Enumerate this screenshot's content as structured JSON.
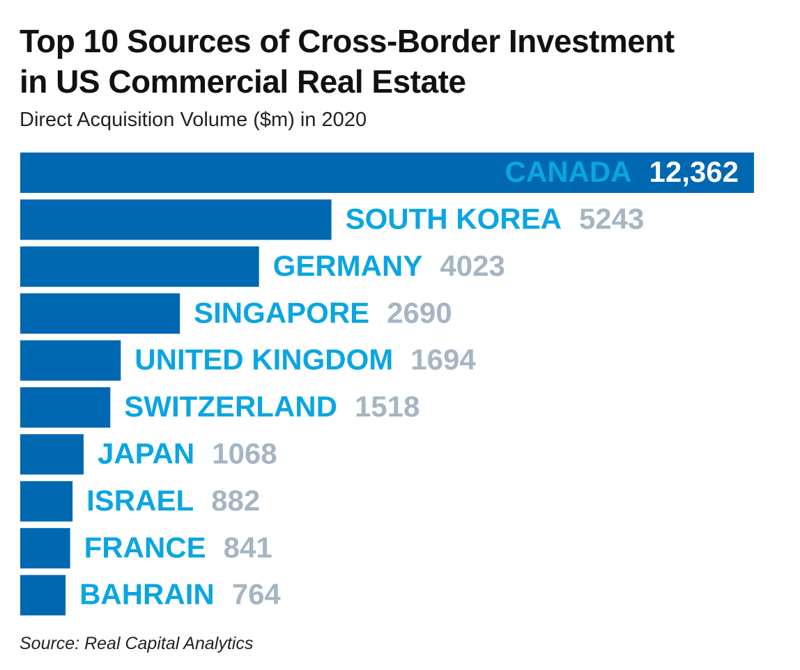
{
  "chart_data": {
    "type": "bar",
    "orientation": "horizontal",
    "title": "Top 10 Sources of Cross-Border Investment in US Commercial Real Estate",
    "subtitle": "Direct Acquisition Volume ($m) in 2020",
    "source": "Source: Real Capital Analytics",
    "categories": [
      "CANADA",
      "SOUTH KOREA",
      "GERMANY",
      "SINGAPORE",
      "UNITED KINGDOM",
      "SWITZERLAND",
      "JAPAN",
      "ISRAEL",
      "FRANCE",
      "BAHRAIN"
    ],
    "values": [
      12362,
      5243,
      4023,
      2690,
      1694,
      1518,
      1068,
      882,
      841,
      764
    ],
    "value_labels": [
      "12,362",
      "5243",
      "4023",
      "2690",
      "1694",
      "1518",
      "1068",
      "882",
      "841",
      "764"
    ],
    "color": "#0068b1",
    "label_color": "#0aa5e2",
    "value_label_color": "#a5b5c3"
  }
}
